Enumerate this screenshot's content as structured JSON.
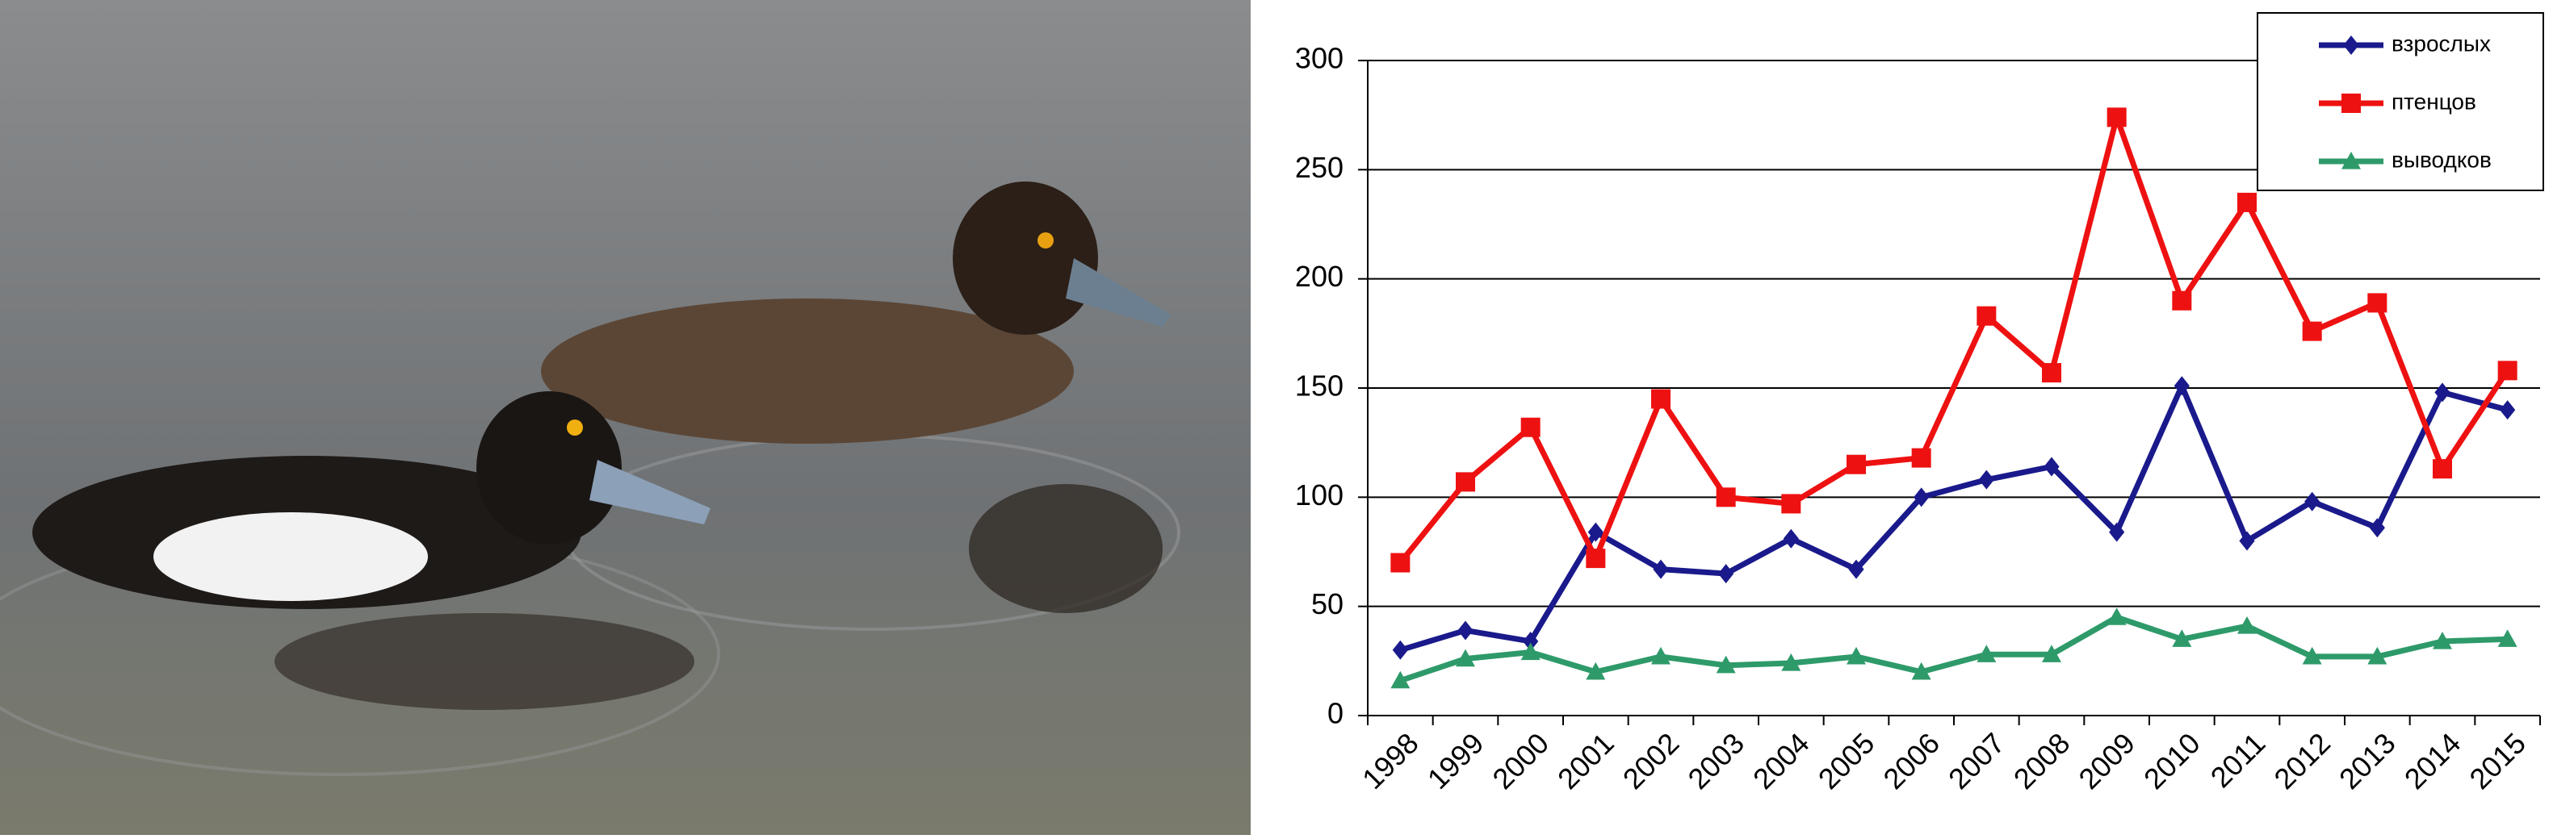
{
  "chart_data": {
    "type": "line",
    "categories": [
      "1998",
      "1999",
      "2000",
      "2001",
      "2002",
      "2003",
      "2004",
      "2005",
      "2006",
      "2007",
      "2008",
      "2009",
      "2010",
      "2011",
      "2012",
      "2013",
      "2014",
      "2015"
    ],
    "series": [
      {
        "name": "взрослых",
        "color": "#1a1a8c",
        "marker": "diamond",
        "values": [
          30,
          39,
          34,
          84,
          67,
          65,
          81,
          67,
          100,
          108,
          114,
          84,
          151,
          80,
          98,
          86,
          148,
          140
        ]
      },
      {
        "name": "птенцов",
        "color": "#ee1111",
        "marker": "square",
        "values": [
          70,
          107,
          132,
          72,
          145,
          100,
          97,
          115,
          118,
          183,
          157,
          274,
          190,
          235,
          176,
          189,
          113,
          158
        ]
      },
      {
        "name": "выводков",
        "color": "#2e9a6a",
        "marker": "triangle",
        "values": [
          16,
          26,
          29,
          20,
          27,
          23,
          24,
          27,
          20,
          28,
          28,
          45,
          35,
          41,
          27,
          27,
          34,
          35
        ]
      }
    ],
    "ylim": [
      0,
      300
    ],
    "yticks": [
      0,
      50,
      100,
      150,
      200,
      250,
      300
    ],
    "grid": true,
    "legend": "upper-right"
  }
}
